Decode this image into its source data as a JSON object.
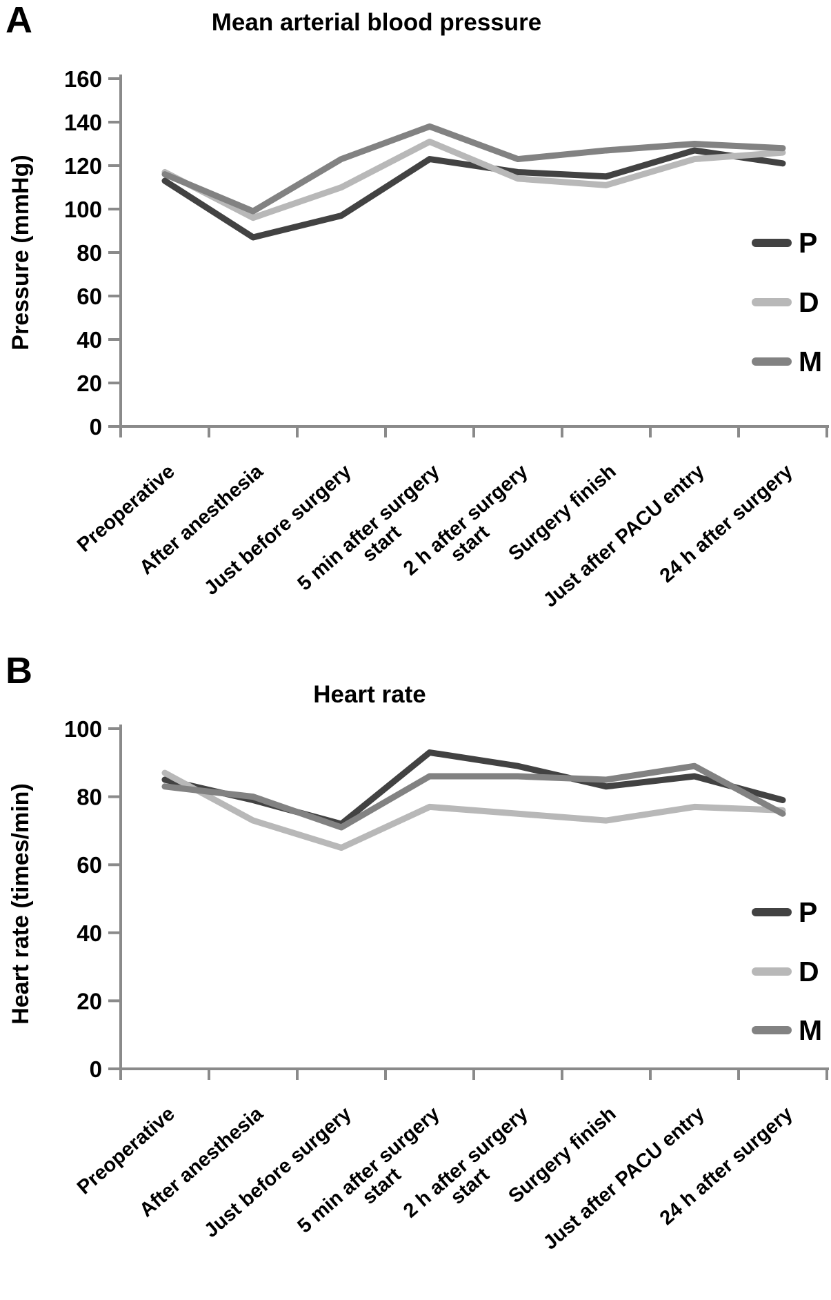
{
  "figure_colors": {
    "series_P": "#424242",
    "series_D": "#b8b8b8",
    "series_M": "#828282",
    "axis": "#8a8a8a",
    "text": "#000000"
  },
  "chart_data": [
    {
      "type": "line",
      "panel_letter": "A",
      "title": "Mean arterial blood pressure",
      "xlabel": "",
      "ylabel": "Pressure (mmHg)",
      "ylim": [
        0,
        160
      ],
      "ytick_step": 20,
      "ytick_labels": [
        "0",
        "20",
        "40",
        "60",
        "80",
        "100",
        "120",
        "140",
        "160"
      ],
      "grid": false,
      "legend_position": "right",
      "legend_entries": [
        "P",
        "D",
        "M"
      ],
      "categories": [
        "Preoperative",
        "After anesthesia",
        "Just before surgery",
        "5 min after surgery\nstart",
        "2 h after surgery\nstart",
        "Surgery finish",
        "Just after PACU entry",
        "24 h after surgery"
      ],
      "series": [
        {
          "name": "P",
          "color": "#424242",
          "values": [
            113,
            87,
            97,
            123,
            117,
            115,
            127,
            121
          ]
        },
        {
          "name": "D",
          "color": "#b8b8b8",
          "values": [
            117,
            96,
            110,
            131,
            114,
            111,
            123,
            126
          ]
        },
        {
          "name": "M",
          "color": "#828282",
          "values": [
            116,
            99,
            123,
            138,
            123,
            127,
            130,
            128
          ]
        }
      ]
    },
    {
      "type": "line",
      "panel_letter": "B",
      "title": "Heart rate",
      "xlabel": "",
      "ylabel": "Heart rate (times/min)",
      "ylim": [
        0,
        100
      ],
      "ytick_step": 20,
      "ytick_labels": [
        "0",
        "20",
        "40",
        "60",
        "80",
        "100"
      ],
      "grid": false,
      "legend_position": "right",
      "legend_entries": [
        "P",
        "D",
        "M"
      ],
      "categories": [
        "Preoperative",
        "After anesthesia",
        "Just before surgery",
        "5 min after surgery\nstart",
        "2 h after surgery\nstart",
        "Surgery finish",
        "Just after PACU entry",
        "24 h after surgery"
      ],
      "series": [
        {
          "name": "P",
          "color": "#424242",
          "values": [
            85,
            79,
            72,
            93,
            89,
            83,
            86,
            79
          ]
        },
        {
          "name": "D",
          "color": "#b8b8b8",
          "values": [
            87,
            73,
            65,
            77,
            75,
            73,
            77,
            76
          ]
        },
        {
          "name": "M",
          "color": "#828282",
          "values": [
            83,
            80,
            71,
            86,
            86,
            85,
            89,
            75
          ]
        }
      ]
    }
  ]
}
